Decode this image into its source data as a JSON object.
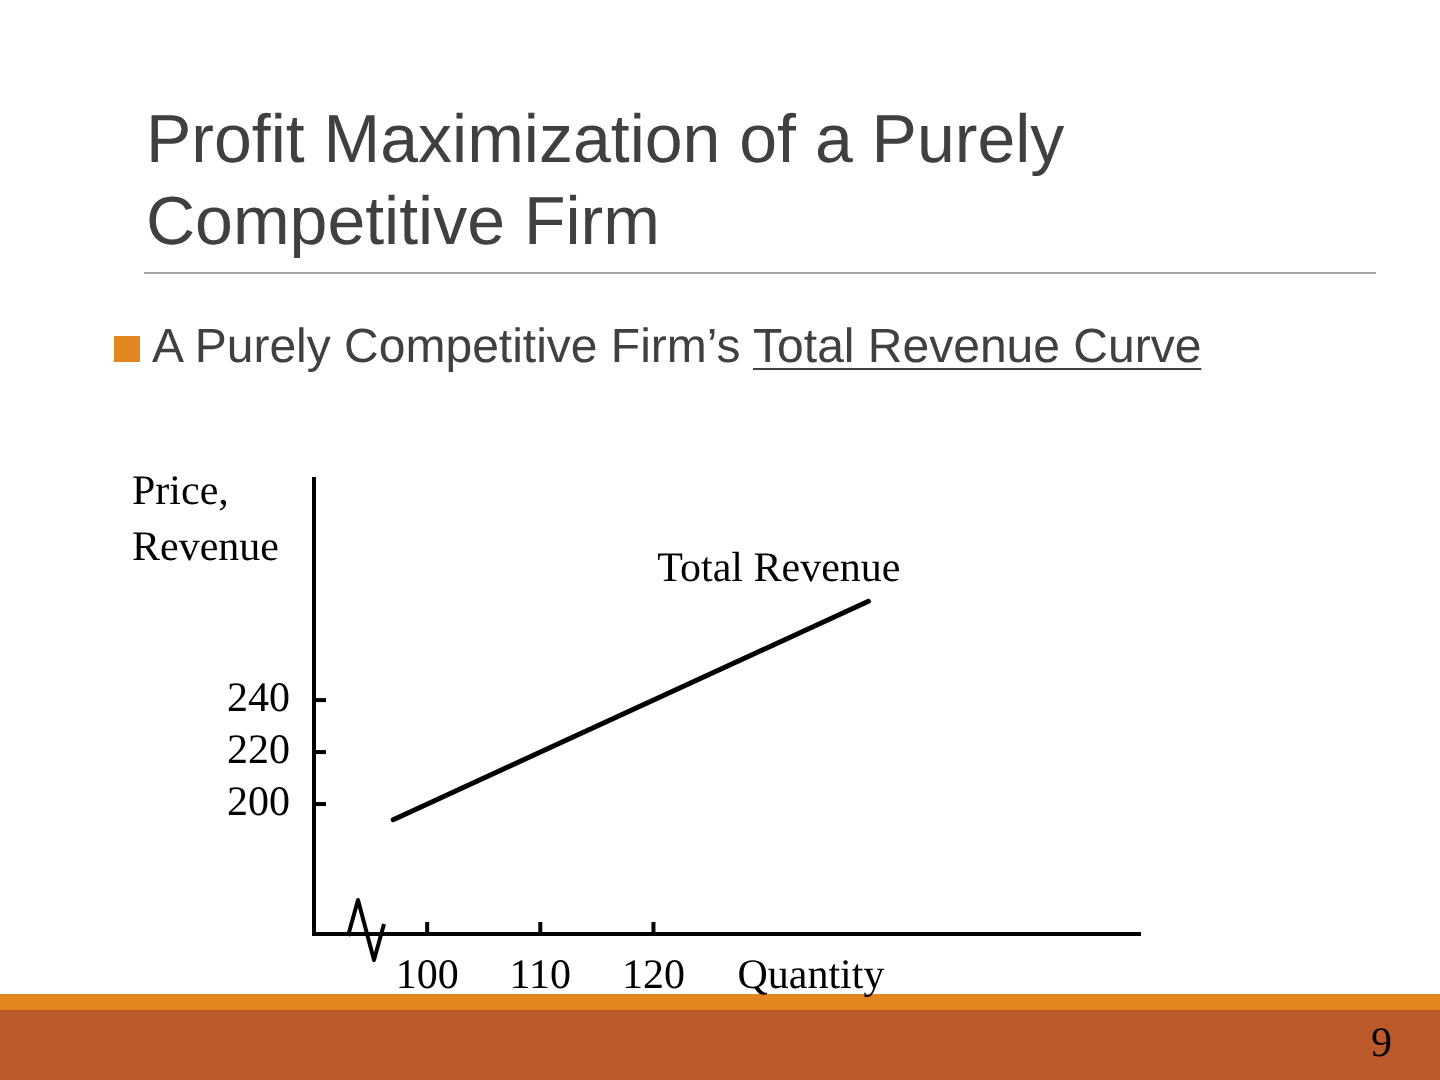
{
  "chart_data": {
    "type": "line",
    "title": "Profit Maximization of a Purely Competitive Firm",
    "subtitle": "A Purely Competitive Firm’s Total Revenue Curve",
    "xlabel": "Quantity",
    "ylabel": "Price, Revenue",
    "annotations": [
      "9"
    ],
    "x": [
      97,
      139
    ],
    "series": [
      {
        "name": "Total Revenue",
        "color": "#000000",
        "values": [
          194,
          278
        ]
      }
    ],
    "xlim": [
      90,
      163
    ],
    "ylim": [
      150,
      325
    ],
    "xticks": [
      100,
      110,
      120
    ],
    "yticks": [
      200,
      220,
      240
    ],
    "grid": false,
    "legend": false
  }
}
